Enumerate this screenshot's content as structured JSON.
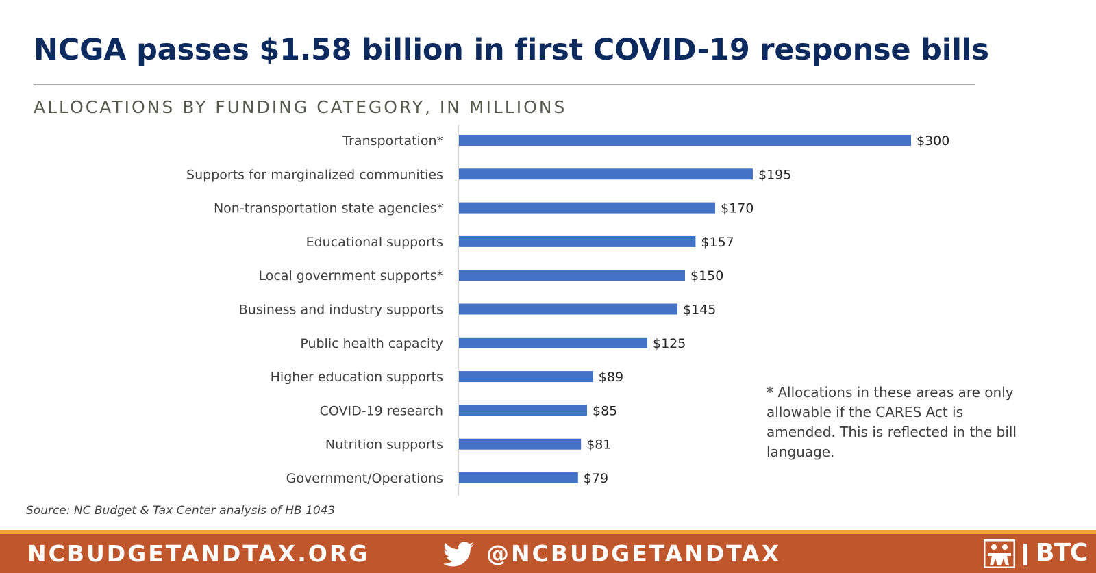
{
  "headline": "NCGA passes $1.58 billion in first COVID-19 response bills",
  "note": "* Allocations in these areas are only allowable if the CARES Act is amended. This is reflected in the bill language.",
  "source": "Source: NC Budget & Tax Center analysis of HB 1043",
  "footer": {
    "website": "NCBUDGETANDTAX.ORG",
    "twitter_handle": "@NCBUDGETANDTAX",
    "twitter_icon": "twitter-bird-icon",
    "logo_text": "BTC",
    "logo_icon": "people-logo-icon",
    "background_color": "#c0562b",
    "stripe_color": "#f2a33a"
  },
  "colors": {
    "headline": "#0c2a5e",
    "bar": "#4472c4"
  },
  "chart_data": {
    "type": "bar",
    "orientation": "horizontal",
    "title": "ALLOCATIONS BY FUNDING CATEGORY, IN MILLIONS",
    "xlabel": "",
    "ylabel": "",
    "xlim": [
      0,
      300
    ],
    "grid": false,
    "legend": "none",
    "categories": [
      "Transportation*",
      "Supports for marginalized communities",
      "Non-transportation state agencies*",
      "Educational supports",
      "Local government supports*",
      "Business and industry supports",
      "Public health capacity",
      "Higher education supports",
      "COVID-19 research",
      "Nutrition supports",
      "Government/Operations"
    ],
    "values": [
      300,
      195,
      170,
      157,
      150,
      145,
      125,
      89,
      85,
      81,
      79
    ],
    "data_labels": [
      "$300",
      "$195",
      "$170",
      "$157",
      "$150",
      "$145",
      "$125",
      "$89",
      "$85",
      "$81",
      "$79"
    ]
  }
}
